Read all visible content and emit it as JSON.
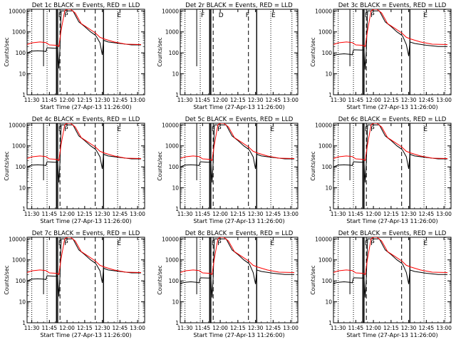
{
  "figure": {
    "xlabel": "Start Time (27-Apr-13 11:26:00)",
    "ylabel": "Counts/sec",
    "x_ticks": [
      "11:30",
      "11:45",
      "12:00",
      "12:15",
      "12:30",
      "12:45",
      "13:00"
    ],
    "y_ticks": [
      "1",
      "10",
      "100",
      "1000",
      "10000"
    ],
    "flag_letters": {
      "a": "F",
      "b": "P",
      "c": "E",
      "d": "D"
    }
  },
  "colors": {
    "events": "#000000",
    "lld": "#ff0000"
  },
  "chart_data": [
    {
      "type": "line",
      "title": "Det 1c BLACK = Events, RED = LLD",
      "has_data": true,
      "ylog": true,
      "xlim": [
        "11:26",
        "13:06"
      ],
      "ylim": [
        1,
        12000
      ],
      "events_series": "standard",
      "lld_series": "standard",
      "flags": [
        "F",
        "P",
        "E"
      ]
    },
    {
      "type": "line",
      "title": "Det 2r BLACK = Events, RED = LLD",
      "has_data": false,
      "ylog": true,
      "xlim": [
        "11:26",
        "13:06"
      ],
      "ylim": [
        1,
        12000
      ],
      "events_series": "",
      "lld_series": "",
      "flags": [
        "F",
        "D",
        "F",
        "E"
      ]
    },
    {
      "type": "line",
      "title": "Det 3c BLACK = Events, RED = LLD",
      "has_data": true,
      "ylog": true,
      "xlim": [
        "11:26",
        "13:06"
      ],
      "ylim": [
        1,
        12000
      ],
      "events_series": "low",
      "lld_series": "standard",
      "flags": [
        "F",
        "P",
        "E"
      ]
    },
    {
      "type": "line",
      "title": "Det 4c BLACK = Events, RED = LLD",
      "has_data": true,
      "ylog": true,
      "xlim": [
        "11:26",
        "13:06"
      ],
      "ylim": [
        1,
        12000
      ],
      "events_series": "standard",
      "lld_series": "standard",
      "flags": [
        "F",
        "P",
        "E"
      ]
    },
    {
      "type": "line",
      "title": "Det 5c BLACK = Events, RED = LLD",
      "has_data": true,
      "ylog": true,
      "xlim": [
        "11:26",
        "13:06"
      ],
      "ylim": [
        1,
        12000
      ],
      "events_series": "standard",
      "lld_series": "standard",
      "flags": [
        "F",
        "P",
        "E"
      ]
    },
    {
      "type": "line",
      "title": "Det 6c BLACK = Events, RED = LLD",
      "has_data": true,
      "ylog": true,
      "xlim": [
        "11:26",
        "13:06"
      ],
      "ylim": [
        1,
        12000
      ],
      "events_series": "standard",
      "lld_series": "standard",
      "flags": [
        "F",
        "P",
        "E"
      ]
    },
    {
      "type": "line",
      "title": "Det 7c BLACK = Events, RED = LLD",
      "has_data": true,
      "ylog": true,
      "xlim": [
        "11:26",
        "13:06"
      ],
      "ylim": [
        1,
        12000
      ],
      "events_series": "standard",
      "lld_series": "standard",
      "flags": [
        "F",
        "P",
        "E"
      ]
    },
    {
      "type": "line",
      "title": "Det 8c BLACK = Events, RED = LLD",
      "has_data": true,
      "ylog": true,
      "xlim": [
        "11:26",
        "13:06"
      ],
      "ylim": [
        1,
        12000
      ],
      "events_series": "low",
      "lld_series": "standard",
      "flags": [
        "F",
        "P",
        "E"
      ]
    },
    {
      "type": "line",
      "title": "Det 9c BLACK = Events, RED = LLD",
      "has_data": true,
      "ylog": true,
      "xlim": [
        "11:26",
        "13:06"
      ],
      "ylim": [
        1,
        12000
      ],
      "events_series": "low",
      "lld_series": "standard",
      "flags": [
        "F",
        "P",
        "E"
      ]
    }
  ],
  "series": {
    "events": {
      "standard": [
        [
          "11:26",
          100
        ],
        [
          "11:30",
          120
        ],
        [
          "11:35",
          125
        ],
        [
          "11:40",
          120
        ],
        [
          "11:42",
          115
        ],
        [
          "11:43",
          175
        ],
        [
          "11:50",
          165
        ],
        [
          "11:51",
          170
        ],
        [
          "11:52",
          165
        ],
        [
          "11:53",
          18
        ],
        [
          "11:54",
          180
        ],
        [
          "11:55",
          10000
        ],
        [
          "12:00",
          10000
        ],
        [
          "12:05",
          10000
        ],
        [
          "12:10",
          3000
        ],
        [
          "12:15",
          1800
        ],
        [
          "12:20",
          1000
        ],
        [
          "12:24",
          700
        ],
        [
          "12:25",
          600
        ],
        [
          "12:28",
          300
        ],
        [
          "12:30",
          80
        ],
        [
          "12:31",
          400
        ],
        [
          "12:35",
          330
        ],
        [
          "12:45",
          280
        ],
        [
          "12:55",
          240
        ],
        [
          "13:03",
          240
        ]
      ],
      "low": [
        [
          "11:26",
          75
        ],
        [
          "11:30",
          85
        ],
        [
          "11:35",
          90
        ],
        [
          "11:40",
          85
        ],
        [
          "11:42",
          80
        ],
        [
          "11:43",
          140
        ],
        [
          "11:50",
          135
        ],
        [
          "11:51",
          140
        ],
        [
          "11:52",
          135
        ],
        [
          "11:53",
          16
        ],
        [
          "11:54",
          150
        ],
        [
          "11:55",
          10000
        ],
        [
          "12:00",
          10000
        ],
        [
          "12:05",
          10000
        ],
        [
          "12:10",
          3000
        ],
        [
          "12:15",
          1800
        ],
        [
          "12:20",
          1000
        ],
        [
          "12:24",
          700
        ],
        [
          "12:25",
          600
        ],
        [
          "12:28",
          250
        ],
        [
          "12:30",
          70
        ],
        [
          "12:31",
          330
        ],
        [
          "12:35",
          280
        ],
        [
          "12:45",
          230
        ],
        [
          "12:55",
          200
        ],
        [
          "13:03",
          200
        ]
      ]
    },
    "lld": {
      "standard": [
        [
          "11:26",
          250
        ],
        [
          "11:30",
          300
        ],
        [
          "11:37",
          330
        ],
        [
          "11:42",
          310
        ],
        [
          "11:45",
          240
        ],
        [
          "11:50",
          230
        ],
        [
          "11:52",
          220
        ],
        [
          "11:53",
          200
        ],
        [
          "11:55",
          1200
        ],
        [
          "11:58",
          10000
        ],
        [
          "12:00",
          12000
        ],
        [
          "12:03",
          12000
        ],
        [
          "12:07",
          8000
        ],
        [
          "12:12",
          2500
        ],
        [
          "12:18",
          1500
        ],
        [
          "12:24",
          900
        ],
        [
          "12:28",
          550
        ],
        [
          "12:32",
          450
        ],
        [
          "12:40",
          330
        ],
        [
          "12:50",
          260
        ],
        [
          "13:03",
          250
        ]
      ]
    }
  }
}
